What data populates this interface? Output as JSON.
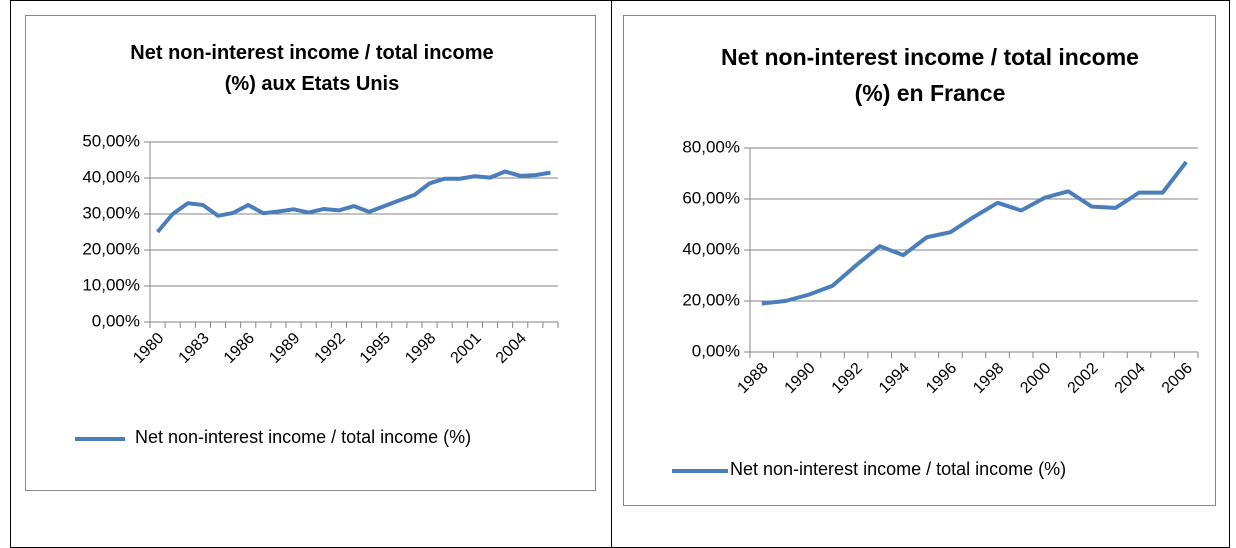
{
  "chart_data": [
    {
      "type": "line",
      "title": "Net non-interest income / total income (%) aux Etats Unis",
      "categories": [
        "1980",
        null,
        null,
        "1983",
        null,
        null,
        "1986",
        null,
        null,
        "1989",
        null,
        null,
        "1992",
        null,
        null,
        "1995",
        null,
        null,
        "1998",
        null,
        null,
        "2001",
        null,
        null,
        "2004",
        null,
        null
      ],
      "series": [
        {
          "name": "Net non-interest income / total income (%)",
          "color": "#4a7ebb",
          "values": [
            25,
            30,
            33,
            32.5,
            29.5,
            30.3,
            32.5,
            30.2,
            30.7,
            31.3,
            30.4,
            31.4,
            31,
            32.2,
            30.6,
            32.2,
            33.8,
            35.3,
            38.5,
            39.8,
            39.8,
            40.5,
            40.1,
            41.8,
            40.6,
            40.8,
            41.5
          ]
        }
      ],
      "ylim": [
        0,
        50
      ],
      "yticks": [
        {
          "value": 0,
          "label": "0,00%"
        },
        {
          "value": 10,
          "label": "10,00%"
        },
        {
          "value": 20,
          "label": "20,00%"
        },
        {
          "value": 30,
          "label": "30,00%"
        },
        {
          "value": 40,
          "label": "40,00%"
        },
        {
          "value": 50,
          "label": "50,00%"
        }
      ],
      "grid": true,
      "legend": "bottom"
    },
    {
      "type": "line",
      "title": "Net non-interest income / total income (%) en France",
      "categories": [
        "1988",
        null,
        "1990",
        null,
        "1992",
        null,
        "1994",
        null,
        "1996",
        null,
        "1998",
        null,
        "2000",
        null,
        "2002",
        null,
        "2004",
        null,
        "2006"
      ],
      "series": [
        {
          "name": "Net non-interest income / total income (%)",
          "color": "#4a7ebb",
          "values": [
            19,
            20,
            22.5,
            26,
            34,
            41.5,
            38,
            45,
            47,
            53,
            58.5,
            55.5,
            60.5,
            63,
            57,
            56.5,
            62.5,
            62.5,
            74.5
          ]
        }
      ],
      "ylim": [
        0,
        80
      ],
      "yticks": [
        {
          "value": 0,
          "label": "0,00%"
        },
        {
          "value": 20,
          "label": "20,00%"
        },
        {
          "value": 40,
          "label": "40,00%"
        },
        {
          "value": 60,
          "label": "60,00%"
        },
        {
          "value": 80,
          "label": "80,00%"
        }
      ],
      "grid": true,
      "legend": "bottom"
    }
  ]
}
